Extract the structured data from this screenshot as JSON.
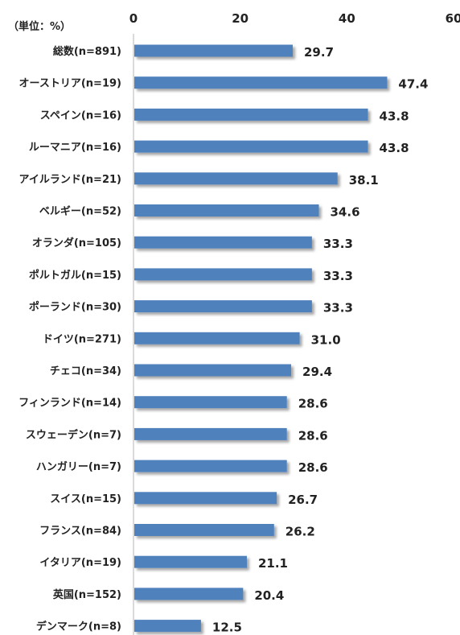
{
  "unit_label": "（単位：%）",
  "chart_data": {
    "type": "bar",
    "orientation": "horizontal",
    "xlim": [
      0,
      60
    ],
    "ticks": [
      "0",
      "20",
      "40",
      "60"
    ],
    "tick_values": [
      0,
      20,
      40,
      60
    ],
    "grid": false,
    "bar_color": "#4F81BD",
    "categories": [
      "総数(n=891)",
      "オーストリア(n=19)",
      "スペイン(n=16)",
      "ルーマニア(n=16)",
      "アイルランド(n=21)",
      "ベルギー(n=52)",
      "オランダ(n=105)",
      "ポルトガル(n=15)",
      "ポーランド(n=30)",
      "ドイツ(n=271)",
      "チェコ(n=34)",
      "フィンランド(n=14)",
      "スウェーデン(n=7)",
      "ハンガリー(n=7)",
      "スイス(n=15)",
      "フランス(n=84)",
      "イタリア(n=19)",
      "英国(n=152)",
      "デンマーク(n=8)"
    ],
    "values": [
      29.7,
      47.4,
      43.8,
      43.8,
      38.1,
      34.6,
      33.3,
      33.3,
      33.3,
      31.0,
      29.4,
      28.6,
      28.6,
      28.6,
      26.7,
      26.2,
      21.1,
      20.4,
      12.5
    ],
    "value_labels": [
      "29.7",
      "47.4",
      "43.8",
      "43.8",
      "38.1",
      "34.6",
      "33.3",
      "33.3",
      "33.3",
      "31.0",
      "29.4",
      "28.6",
      "28.6",
      "28.6",
      "26.7",
      "26.2",
      "21.1",
      "20.4",
      "12.5"
    ]
  }
}
